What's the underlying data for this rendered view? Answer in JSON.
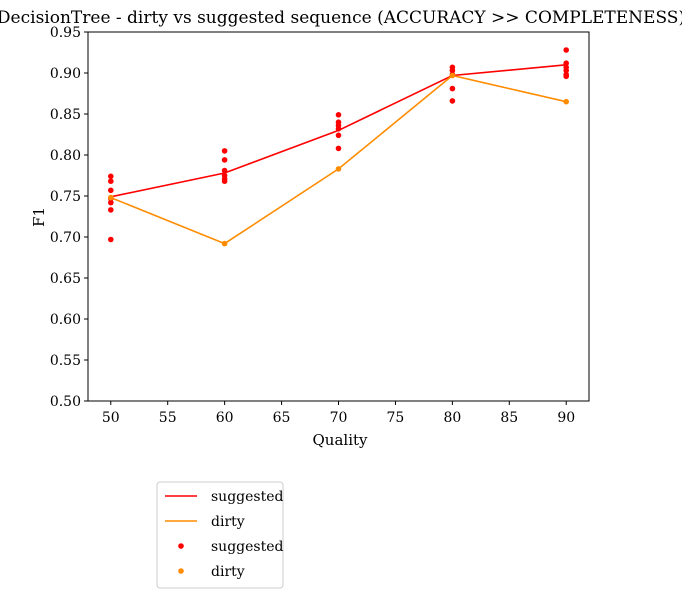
{
  "chart_data": {
    "type": "line",
    "title": "DecisionTree - dirty vs suggested sequence (ACCURACY >> COMPLETENESS)",
    "xlabel": "Quality",
    "ylabel": "F1",
    "xlim": [
      48,
      92
    ],
    "ylim": [
      0.5,
      0.95
    ],
    "xticks": [
      50,
      55,
      60,
      65,
      70,
      75,
      80,
      85,
      90
    ],
    "yticks": [
      0.5,
      0.55,
      0.6,
      0.65,
      0.7,
      0.75,
      0.8,
      0.85,
      0.9,
      0.95
    ],
    "grid": false,
    "legend_position": "below-left",
    "series": [
      {
        "name": "suggested",
        "kind": "line",
        "color": "#ff0000",
        "x": [
          50,
          60,
          70,
          80,
          90
        ],
        "y": [
          0.749,
          0.778,
          0.83,
          0.897,
          0.91
        ]
      },
      {
        "name": "dirty",
        "kind": "line",
        "color": "#ff8c00",
        "x": [
          50,
          60,
          70,
          80,
          90
        ],
        "y": [
          0.748,
          0.692,
          0.783,
          0.897,
          0.865
        ]
      },
      {
        "name": "suggested",
        "kind": "scatter",
        "color": "#ff0000",
        "x": [
          50,
          50,
          50,
          50,
          50,
          50,
          50,
          60,
          60,
          60,
          60,
          60,
          60,
          70,
          70,
          70,
          70,
          70,
          70,
          80,
          80,
          80,
          80,
          80,
          90,
          90,
          90,
          90,
          90,
          90
        ],
        "y": [
          0.774,
          0.768,
          0.757,
          0.747,
          0.742,
          0.733,
          0.697,
          0.805,
          0.794,
          0.781,
          0.775,
          0.771,
          0.768,
          0.849,
          0.84,
          0.836,
          0.832,
          0.824,
          0.808,
          0.907,
          0.903,
          0.898,
          0.881,
          0.866,
          0.928,
          0.912,
          0.907,
          0.903,
          0.898,
          0.896
        ]
      },
      {
        "name": "dirty",
        "kind": "scatter",
        "color": "#ff8c00",
        "x": [
          50,
          60,
          70,
          80,
          90
        ],
        "y": [
          0.748,
          0.692,
          0.783,
          0.897,
          0.865
        ]
      }
    ]
  }
}
